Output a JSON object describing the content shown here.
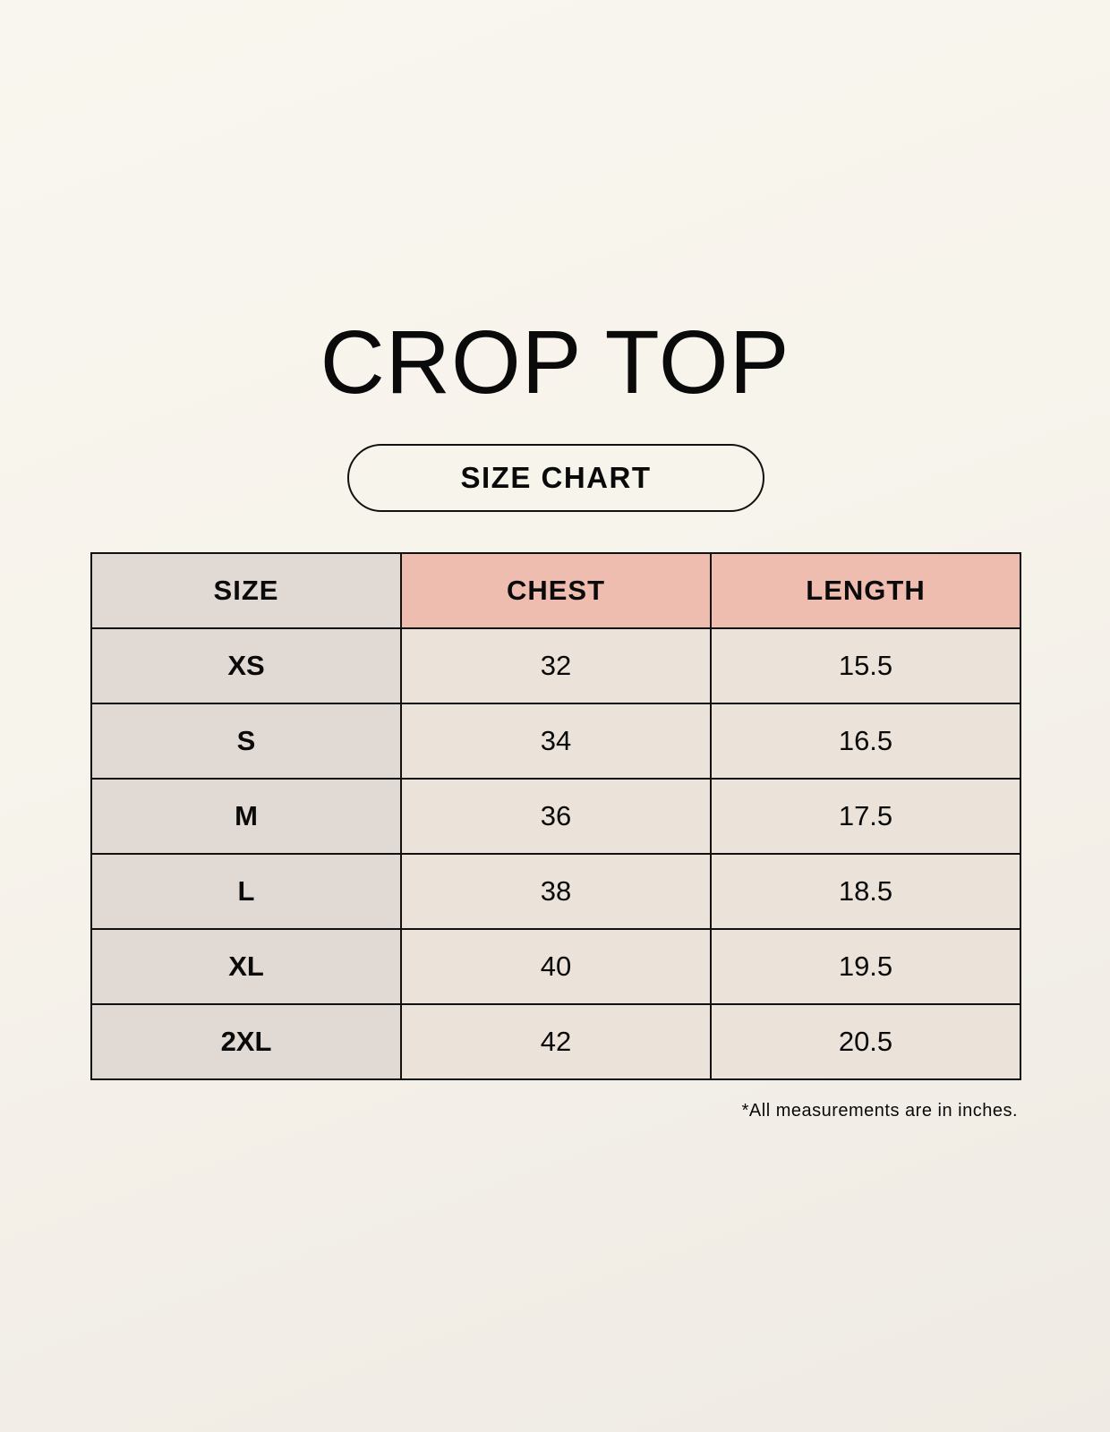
{
  "title": "CROP TOP",
  "subtitle": "SIZE CHART",
  "table": {
    "headers": [
      "SIZE",
      "CHEST",
      "LENGTH"
    ],
    "rows": [
      [
        "XS",
        "32",
        "15.5"
      ],
      [
        "S",
        "34",
        "16.5"
      ],
      [
        "M",
        "36",
        "17.5"
      ],
      [
        "L",
        "38",
        "18.5"
      ],
      [
        "XL",
        "40",
        "19.5"
      ],
      [
        "2XL",
        "42",
        "20.5"
      ]
    ]
  },
  "footnote": "*All measurements are in inches.",
  "colors": {
    "size_column": "#e1d9d3",
    "header_accent": "#efbdb0",
    "value_cells": "#ebe3d9"
  }
}
